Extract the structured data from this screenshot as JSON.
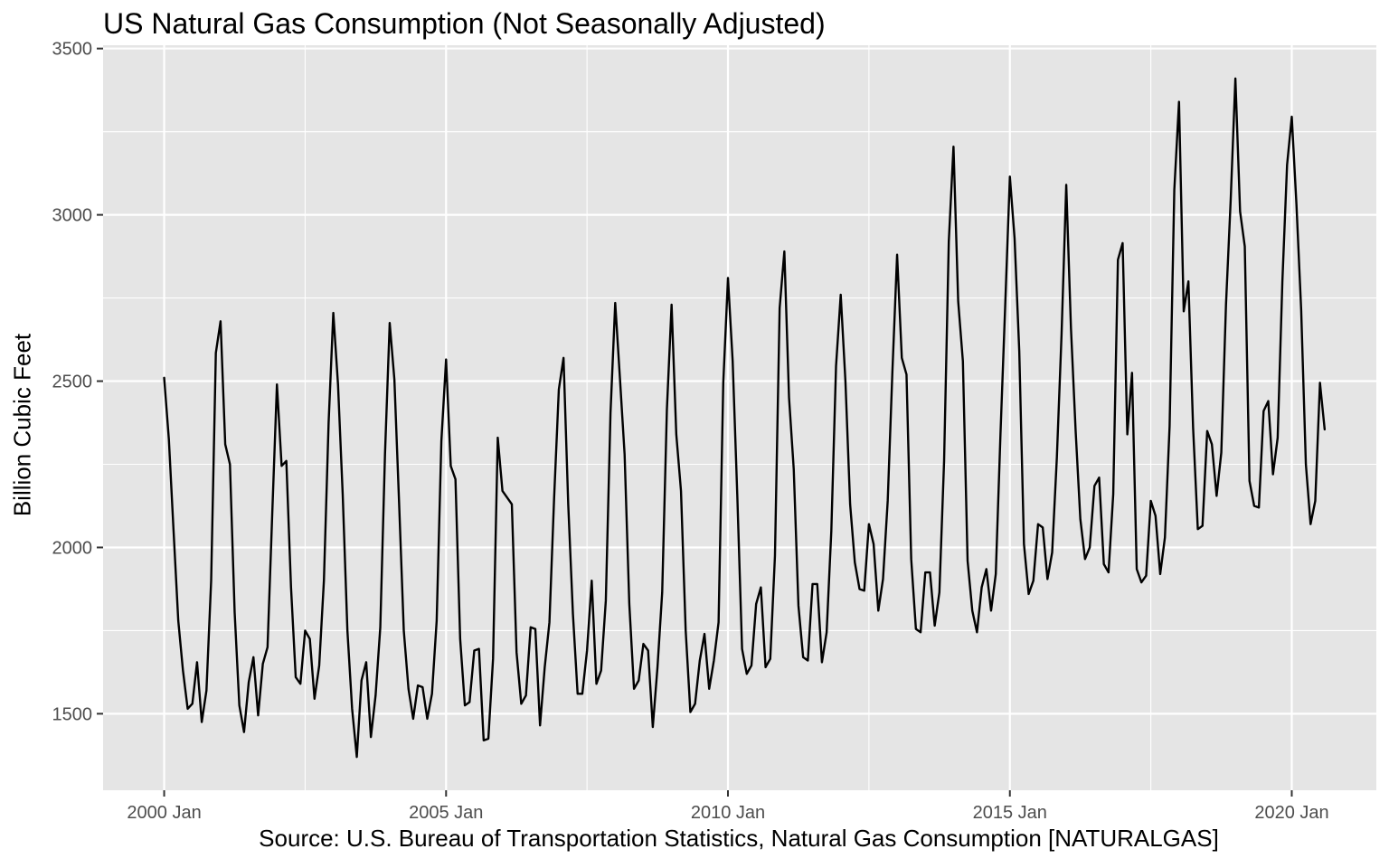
{
  "chart_data": {
    "type": "line",
    "title": "US Natural Gas Consumption (Not Seasonally Adjusted)",
    "xlabel": "Source: U.S. Bureau of Transportation Statistics, Natural Gas Consumption [NATURALGAS]",
    "ylabel": "Billion Cubic Feet",
    "x_ticks": [
      "2000 Jan",
      "2005 Jan",
      "2010 Jan",
      "2015 Jan",
      "2020 Jan"
    ],
    "y_ticks": [
      1500,
      2000,
      2500,
      3000,
      3500
    ],
    "ylim": [
      1270,
      3510
    ],
    "xlim": [
      "1998-12",
      "2021-07"
    ],
    "grid": true,
    "legend": "none",
    "colors": {
      "panel": "#e5e5e5",
      "grid": "#ffffff",
      "line": "#000000",
      "ticktext": "#4d4d4d"
    },
    "series": [
      {
        "start": "2000-01",
        "frequency": "monthly",
        "values": [
          2510,
          2325,
          2050,
          1780,
          1630,
          1515,
          1530,
          1655,
          1475,
          1570,
          1900,
          2585,
          2680,
          2310,
          2250,
          1805,
          1525,
          1445,
          1595,
          1670,
          1495,
          1650,
          1700,
          2100,
          2490,
          2245,
          2260,
          1880,
          1610,
          1590,
          1750,
          1725,
          1545,
          1645,
          1900,
          2375,
          2705,
          2490,
          2160,
          1750,
          1515,
          1370,
          1600,
          1655,
          1430,
          1555,
          1760,
          2280,
          2675,
          2505,
          2135,
          1750,
          1575,
          1485,
          1585,
          1580,
          1485,
          1560,
          1780,
          2320,
          2565,
          2245,
          2205,
          1725,
          1525,
          1535,
          1690,
          1695,
          1420,
          1425,
          1665,
          2330,
          2170,
          2150,
          2130,
          1685,
          1530,
          1555,
          1760,
          1755,
          1465,
          1640,
          1775,
          2150,
          2475,
          2570,
          2130,
          1800,
          1560,
          1560,
          1690,
          1900,
          1590,
          1630,
          1840,
          2405,
          2735,
          2510,
          2280,
          1830,
          1575,
          1600,
          1710,
          1690,
          1460,
          1640,
          1865,
          2415,
          2730,
          2340,
          2170,
          1750,
          1505,
          1530,
          1660,
          1740,
          1575,
          1660,
          1775,
          2495,
          2810,
          2560,
          2150,
          1695,
          1620,
          1645,
          1830,
          1880,
          1640,
          1665,
          1975,
          2720,
          2890,
          2450,
          2235,
          1825,
          1670,
          1660,
          1890,
          1890,
          1655,
          1745,
          2050,
          2545,
          2760,
          2500,
          2130,
          1955,
          1875,
          1870,
          2070,
          2010,
          1810,
          1905,
          2140,
          2530,
          2880,
          2570,
          2520,
          1965,
          1755,
          1745,
          1925,
          1925,
          1765,
          1865,
          2260,
          2920,
          3205,
          2740,
          2560,
          1960,
          1810,
          1745,
          1880,
          1935,
          1810,
          1920,
          2340,
          2725,
          3115,
          2930,
          2590,
          2010,
          1860,
          1900,
          2070,
          2060,
          1905,
          1985,
          2270,
          2640,
          3090,
          2660,
          2350,
          2085,
          1965,
          2000,
          2185,
          2210,
          1950,
          1925,
          2160,
          2865,
          2915,
          2340,
          2525,
          1935,
          1895,
          1915,
          2140,
          2095,
          1920,
          2030,
          2365,
          3075,
          3340,
          2710,
          2800,
          2360,
          2055,
          2065,
          2350,
          2310,
          2155,
          2285,
          2730,
          3045,
          3410,
          3010,
          2905,
          2200,
          2125,
          2120,
          2410,
          2440,
          2220,
          2330,
          2800,
          3150,
          3295,
          3030,
          2715,
          2250,
          2070,
          2140,
          2495,
          2355
        ]
      }
    ]
  }
}
